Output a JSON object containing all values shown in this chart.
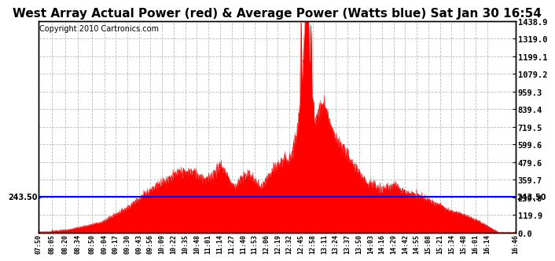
{
  "title": "West Array Actual Power (red) & Average Power (Watts blue) Sat Jan 30 16:54",
  "copyright": "Copyright 2010 Cartronics.com",
  "avg_power": 243.5,
  "y_max": 1438.9,
  "y_min": 0.0,
  "y_ticks": [
    0.0,
    119.9,
    239.8,
    359.7,
    479.6,
    599.6,
    719.5,
    839.4,
    959.3,
    1079.2,
    1199.1,
    1319.0,
    1438.9
  ],
  "background_color": "#ffffff",
  "plot_bg_color": "#ffffff",
  "red_color": "#ff0000",
  "blue_color": "#0000ff",
  "grid_color": "#bbbbbb",
  "title_fontsize": 11,
  "copyright_fontsize": 7,
  "x_labels": [
    "07:50",
    "08:05",
    "08:20",
    "08:34",
    "08:50",
    "09:04",
    "09:17",
    "09:30",
    "09:43",
    "09:56",
    "10:09",
    "10:22",
    "10:35",
    "10:48",
    "11:01",
    "11:14",
    "11:27",
    "11:40",
    "11:53",
    "12:06",
    "12:19",
    "12:32",
    "12:45",
    "12:58",
    "13:11",
    "13:24",
    "13:37",
    "13:50",
    "14:03",
    "14:16",
    "14:29",
    "14:42",
    "14:55",
    "15:08",
    "15:21",
    "15:34",
    "15:48",
    "16:01",
    "16:14",
    "16:46"
  ]
}
